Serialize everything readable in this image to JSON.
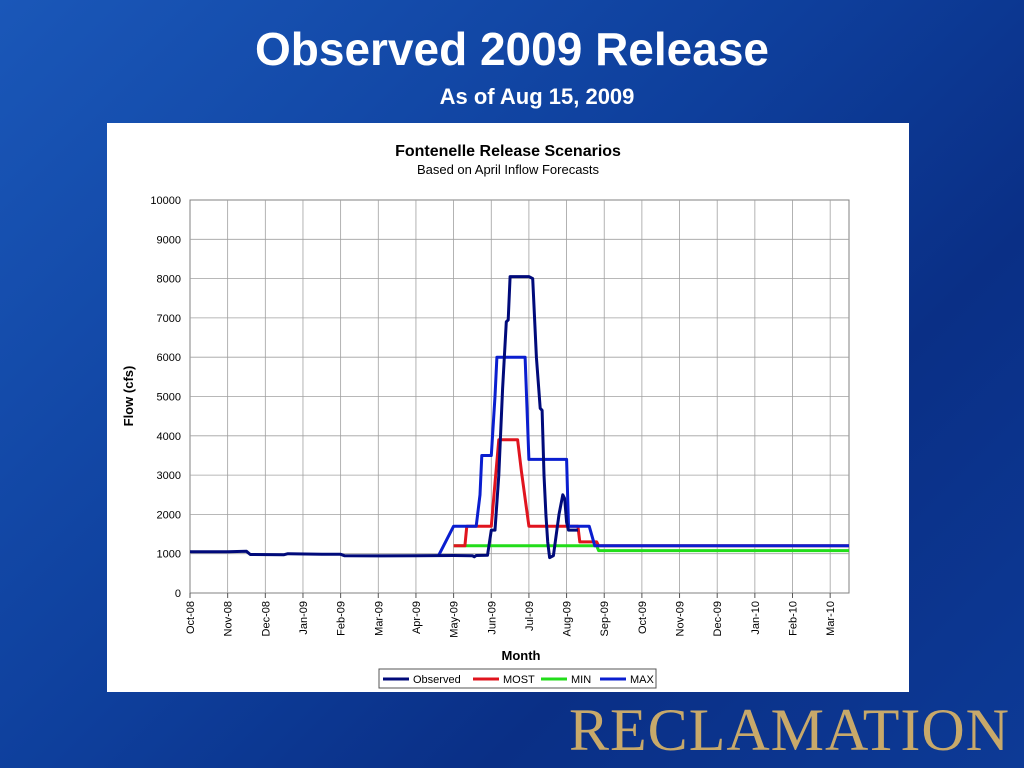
{
  "slide": {
    "title": "Observed 2009 Release",
    "subtitle": "As of Aug 15, 2009",
    "logo_text": "RECLAMATION"
  },
  "chart_data": {
    "type": "line",
    "title": "Fontenelle Release Scenarios",
    "subtitle": "Based on April Inflow Forecasts",
    "xlabel": "Month",
    "ylabel": "Flow (cfs)",
    "ylim": [
      0,
      10000
    ],
    "yticks": [
      0,
      1000,
      2000,
      3000,
      4000,
      5000,
      6000,
      7000,
      8000,
      9000,
      10000
    ],
    "xlim": [
      0,
      17.5
    ],
    "categories": [
      "Oct-08",
      "Nov-08",
      "Dec-08",
      "Jan-09",
      "Feb-09",
      "Mar-09",
      "Apr-09",
      "May-09",
      "Jun-09",
      "Jul-09",
      "Aug-09",
      "Sep-09",
      "Oct-09",
      "Nov-09",
      "Dec-09",
      "Jan-10",
      "Feb-10",
      "Mar-10"
    ],
    "grid": true,
    "legend_position": "bottom",
    "series": [
      {
        "name": "Observed",
        "color": "#000a7a",
        "points": [
          [
            0,
            1050
          ],
          [
            1,
            1050
          ],
          [
            1.5,
            1060
          ],
          [
            1.6,
            980
          ],
          [
            2.5,
            975
          ],
          [
            2.6,
            1000
          ],
          [
            3.5,
            985
          ],
          [
            4,
            985
          ],
          [
            4.1,
            950
          ],
          [
            5,
            945
          ],
          [
            6,
            950
          ],
          [
            7,
            955
          ],
          [
            7.5,
            950
          ],
          [
            7.55,
            920
          ],
          [
            7.6,
            955
          ],
          [
            7.9,
            960
          ],
          [
            8,
            1600
          ],
          [
            8.1,
            1600
          ],
          [
            8.2,
            3000
          ],
          [
            8.3,
            5200
          ],
          [
            8.4,
            6900
          ],
          [
            8.45,
            6950
          ],
          [
            8.5,
            8050
          ],
          [
            8.6,
            8050
          ],
          [
            9,
            8050
          ],
          [
            9.1,
            8000
          ],
          [
            9.2,
            6000
          ],
          [
            9.3,
            4700
          ],
          [
            9.35,
            4650
          ],
          [
            9.4,
            3000
          ],
          [
            9.45,
            2000
          ],
          [
            9.5,
            1300
          ],
          [
            9.55,
            900
          ],
          [
            9.65,
            950
          ],
          [
            9.8,
            2000
          ],
          [
            9.9,
            2500
          ],
          [
            9.95,
            2400
          ],
          [
            10,
            1800
          ],
          [
            10.05,
            1600
          ],
          [
            10.3,
            1600
          ]
        ]
      },
      {
        "name": "MOST",
        "color": "#e0141e",
        "points": [
          [
            7,
            1200
          ],
          [
            7.3,
            1200
          ],
          [
            7.35,
            1700
          ],
          [
            8,
            1700
          ],
          [
            8.1,
            2800
          ],
          [
            8.2,
            3900
          ],
          [
            8.7,
            3900
          ],
          [
            8.8,
            3100
          ],
          [
            9,
            1700
          ],
          [
            10,
            1700
          ],
          [
            10.3,
            1700
          ],
          [
            10.35,
            1300
          ],
          [
            10.8,
            1300
          ],
          [
            10.85,
            1200
          ],
          [
            17.5,
            1200
          ]
        ]
      },
      {
        "name": "MIN",
        "color": "#22dd1a",
        "points": [
          [
            7,
            1200
          ],
          [
            10.8,
            1200
          ],
          [
            10.85,
            1080
          ],
          [
            17.5,
            1080
          ]
        ]
      },
      {
        "name": "MAX",
        "color": "#0a1ecf",
        "points": [
          [
            6.6,
            950
          ],
          [
            7,
            1700
          ],
          [
            7.6,
            1700
          ],
          [
            7.7,
            2500
          ],
          [
            7.75,
            3500
          ],
          [
            8,
            3500
          ],
          [
            8.1,
            5000
          ],
          [
            8.15,
            6000
          ],
          [
            8.9,
            6000
          ],
          [
            9,
            3400
          ],
          [
            10,
            3400
          ],
          [
            10.05,
            1700
          ],
          [
            10.6,
            1700
          ],
          [
            10.75,
            1200
          ],
          [
            17.5,
            1200
          ]
        ]
      }
    ]
  }
}
